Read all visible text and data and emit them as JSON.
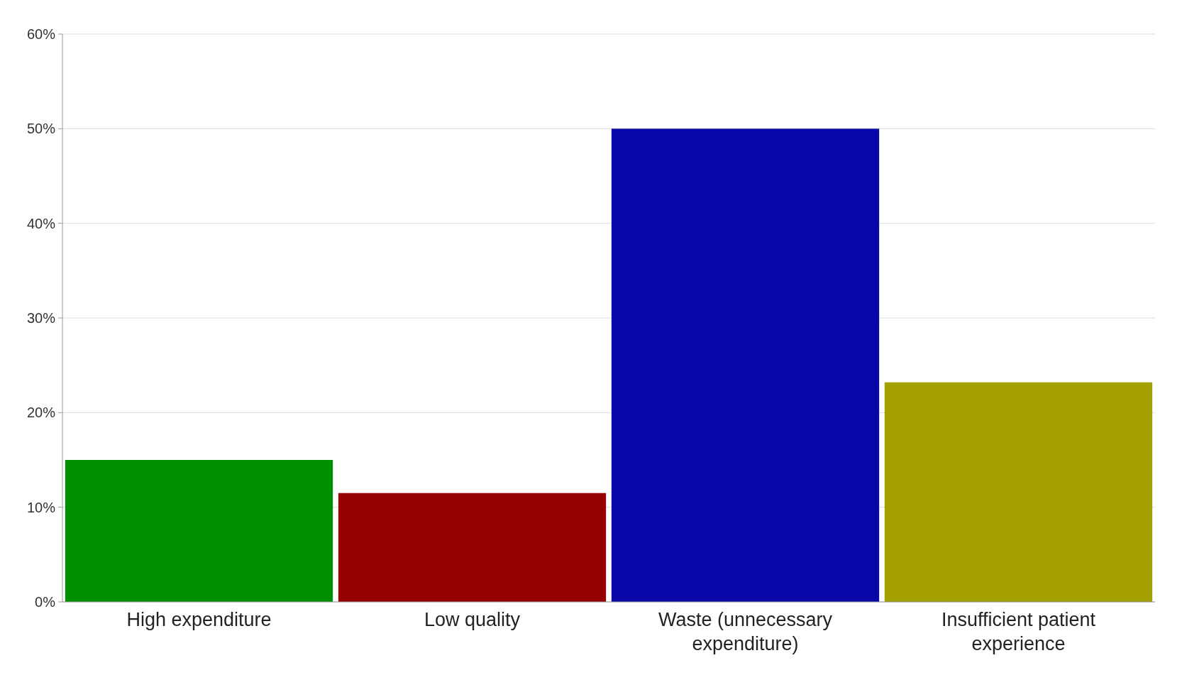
{
  "chart_data": {
    "type": "bar",
    "categories": [
      "High expenditure",
      "Low quality",
      "Waste (unnecessary expenditure)",
      "Insufficient patient experience"
    ],
    "values": [
      15,
      11.5,
      50,
      23.2
    ],
    "colors": [
      "#008f00",
      "#960000",
      "#0808a8",
      "#a3a000"
    ],
    "ylim": [
      0,
      60
    ],
    "yticks": [
      {
        "value": 0,
        "label": "0%"
      },
      {
        "value": 10,
        "label": "10%"
      },
      {
        "value": 20,
        "label": "20%"
      },
      {
        "value": 30,
        "label": "30%"
      },
      {
        "value": 40,
        "label": "40%"
      },
      {
        "value": 50,
        "label": "50%"
      },
      {
        "value": 60,
        "label": "60%"
      }
    ],
    "grid": "y"
  }
}
